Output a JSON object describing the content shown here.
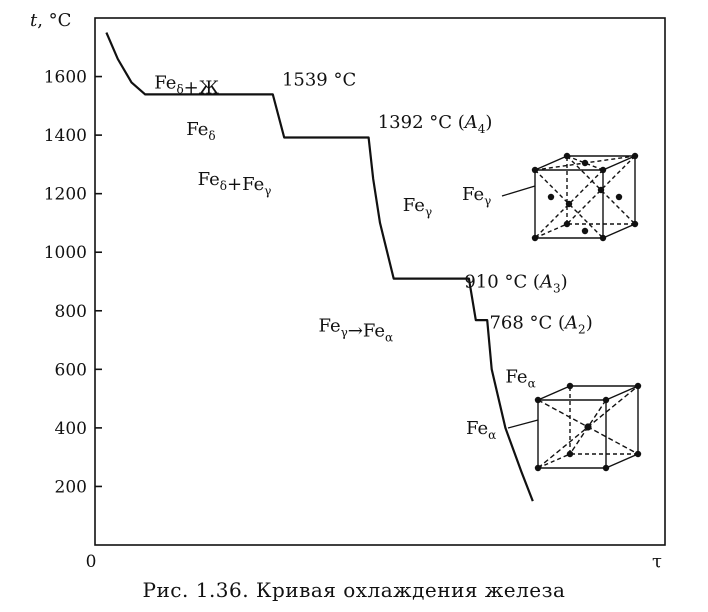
{
  "chart_data": {
    "type": "line",
    "title": "",
    "ylabel": "t, °C",
    "xlabel": "τ",
    "origin_label": "0",
    "ylim": [
      0,
      1800
    ],
    "yticks": [
      200,
      400,
      600,
      800,
      1000,
      1200,
      1400,
      1600
    ],
    "grid": false,
    "series": [
      {
        "points": [
          {
            "x": 0.5,
            "y": 1750
          },
          {
            "x": 1.0,
            "y": 1660
          },
          {
            "x": 1.6,
            "y": 1580
          },
          {
            "x": 2.2,
            "y": 1539
          },
          {
            "x": 7.8,
            "y": 1539
          },
          {
            "x": 8.3,
            "y": 1392
          },
          {
            "x": 12.0,
            "y": 1392
          },
          {
            "x": 12.2,
            "y": 1250
          },
          {
            "x": 12.5,
            "y": 1100
          },
          {
            "x": 13.1,
            "y": 910
          },
          {
            "x": 16.4,
            "y": 910
          },
          {
            "x": 16.7,
            "y": 768
          },
          {
            "x": 17.2,
            "y": 768
          },
          {
            "x": 17.4,
            "y": 600
          },
          {
            "x": 18.0,
            "y": 400
          },
          {
            "x": 18.7,
            "y": 250
          },
          {
            "x": 19.2,
            "y": 150
          }
        ]
      }
    ],
    "annotations": [
      {
        "text": "Fe",
        "sub": "δ",
        "tail": "+Ж",
        "x": 2.6,
        "y": 1560
      },
      {
        "text": "1539 °C",
        "x": 8.2,
        "y": 1570
      },
      {
        "text": "Fe",
        "sub": "δ",
        "tail": "",
        "x": 4.0,
        "y": 1400
      },
      {
        "text": "1392 °C (",
        "italic": "A",
        "isub": "4",
        "close": ")",
        "x": 12.4,
        "y": 1425
      },
      {
        "text": "Fe",
        "sub": "δ",
        "tail": "+Fe",
        "sub2": "γ",
        "x": 4.5,
        "y": 1230
      },
      {
        "text": "Fe",
        "sub": "γ",
        "tail": "",
        "x": 13.5,
        "y": 1140
      },
      {
        "text": "910 °C (",
        "italic": "A",
        "isub": "3",
        "close": ")",
        "x": 16.2,
        "y": 880
      },
      {
        "text": "Fe",
        "sub": "γ",
        "tail": "→Fe",
        "sub2": "α",
        "x": 9.8,
        "y": 730
      },
      {
        "text": "768 °C (",
        "italic": "A",
        "isub": "2",
        "close": ")",
        "x": 17.3,
        "y": 740
      },
      {
        "text": "Fe",
        "sub": "α",
        "tail": "",
        "x": 18.0,
        "y": 555
      }
    ],
    "structures": [
      {
        "label": "Fe",
        "sub": "γ",
        "lattice": "fcc"
      },
      {
        "label": "Fe",
        "sub": "α",
        "lattice": "bcc"
      }
    ]
  },
  "caption": "Рис. 1.36. Кривая охлаждения железа"
}
